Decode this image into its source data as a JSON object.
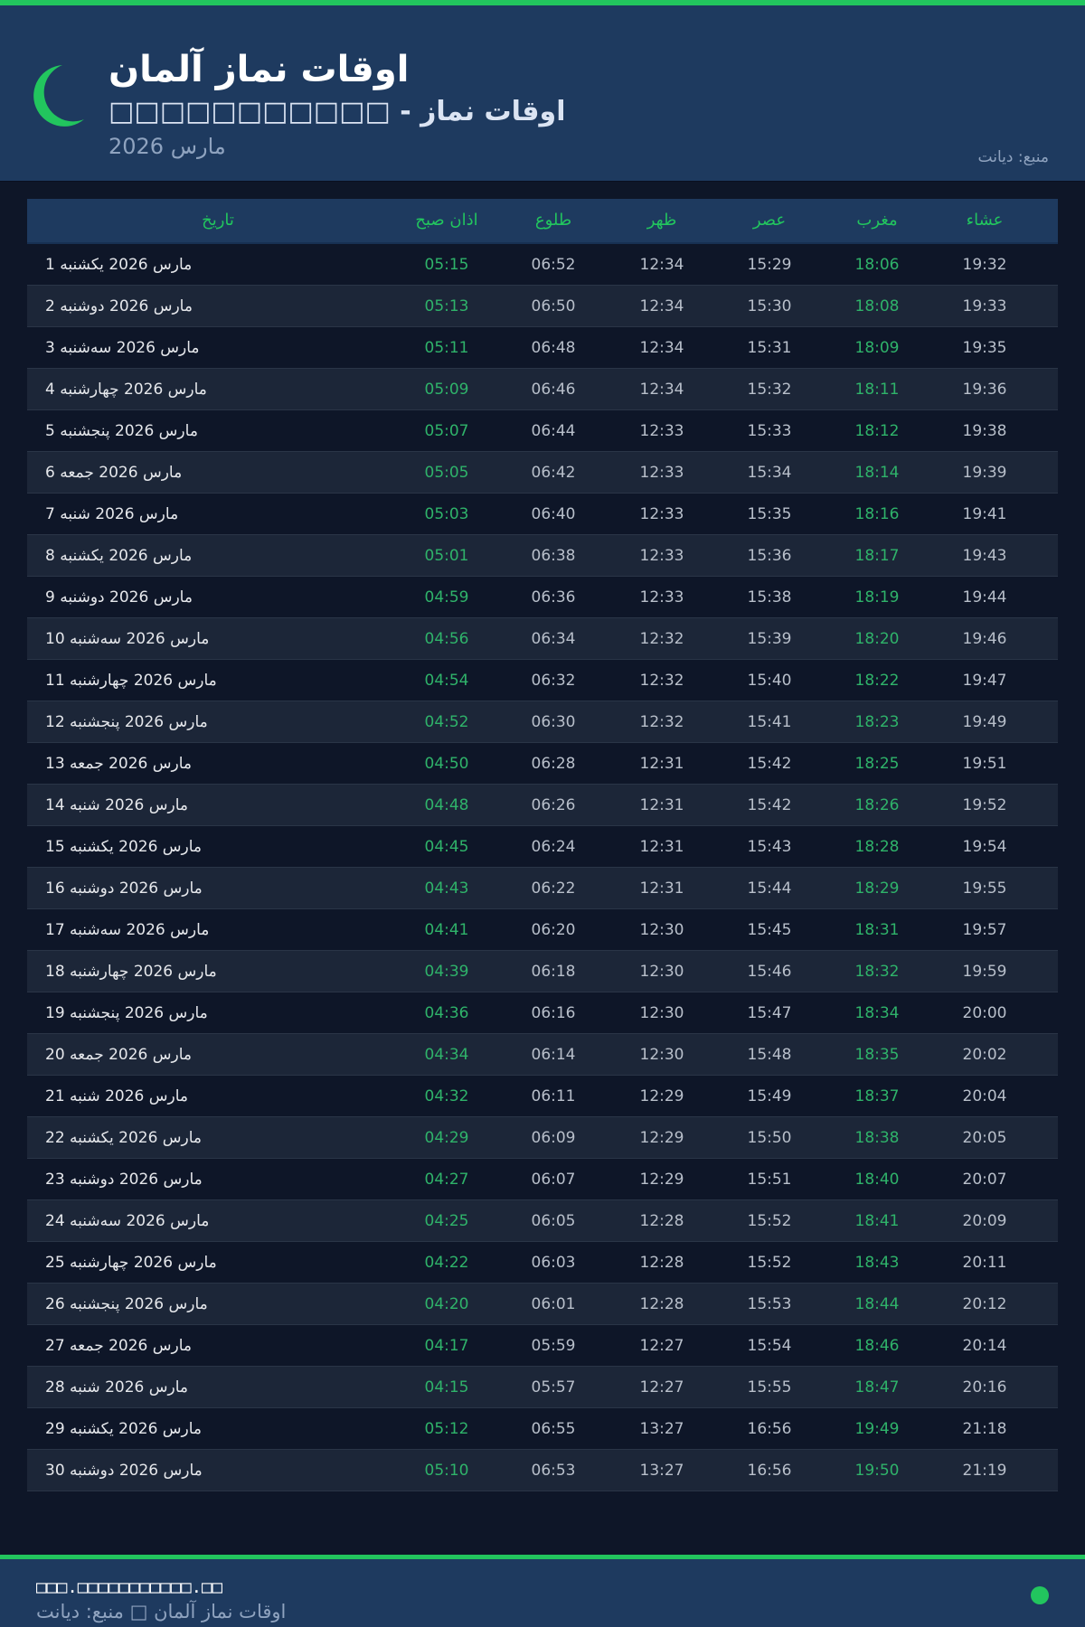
{
  "header": {
    "title": "اوقات نماز آلمان",
    "subtitle": "□□□□□□□□□□□ - اوقات نماز",
    "month": "مارس 2026",
    "source": "منبع: دیانت"
  },
  "colors": {
    "accent": "#22c55e",
    "header_bg": "#1e3a5f",
    "page_bg": "#0e1628"
  },
  "icons": {
    "logo": "crescent-moon-icon"
  },
  "table": {
    "columns": [
      "تاریخ",
      "اذان صبح",
      "طلوع",
      "ظهر",
      "عصر",
      "مغرب",
      "عشاء"
    ],
    "rows": [
      [
        "1 مارس 2026 یکشنبه",
        "05:15",
        "06:52",
        "12:34",
        "15:29",
        "18:06",
        "19:32"
      ],
      [
        "2 مارس 2026 دوشنبه",
        "05:13",
        "06:50",
        "12:34",
        "15:30",
        "18:08",
        "19:33"
      ],
      [
        "3 مارس 2026 سه‌شنبه",
        "05:11",
        "06:48",
        "12:34",
        "15:31",
        "18:09",
        "19:35"
      ],
      [
        "4 مارس 2026 چهارشنبه",
        "05:09",
        "06:46",
        "12:34",
        "15:32",
        "18:11",
        "19:36"
      ],
      [
        "5 مارس 2026 پنجشنبه",
        "05:07",
        "06:44",
        "12:33",
        "15:33",
        "18:12",
        "19:38"
      ],
      [
        "6 مارس 2026 جمعه",
        "05:05",
        "06:42",
        "12:33",
        "15:34",
        "18:14",
        "19:39"
      ],
      [
        "7 مارس 2026 شنبه",
        "05:03",
        "06:40",
        "12:33",
        "15:35",
        "18:16",
        "19:41"
      ],
      [
        "8 مارس 2026 یکشنبه",
        "05:01",
        "06:38",
        "12:33",
        "15:36",
        "18:17",
        "19:43"
      ],
      [
        "9 مارس 2026 دوشنبه",
        "04:59",
        "06:36",
        "12:33",
        "15:38",
        "18:19",
        "19:44"
      ],
      [
        "10 مارس 2026 سه‌شنبه",
        "04:56",
        "06:34",
        "12:32",
        "15:39",
        "18:20",
        "19:46"
      ],
      [
        "11 مارس 2026 چهارشنبه",
        "04:54",
        "06:32",
        "12:32",
        "15:40",
        "18:22",
        "19:47"
      ],
      [
        "12 مارس 2026 پنجشنبه",
        "04:52",
        "06:30",
        "12:32",
        "15:41",
        "18:23",
        "19:49"
      ],
      [
        "13 مارس 2026 جمعه",
        "04:50",
        "06:28",
        "12:31",
        "15:42",
        "18:25",
        "19:51"
      ],
      [
        "14 مارس 2026 شنبه",
        "04:48",
        "06:26",
        "12:31",
        "15:42",
        "18:26",
        "19:52"
      ],
      [
        "15 مارس 2026 یکشنبه",
        "04:45",
        "06:24",
        "12:31",
        "15:43",
        "18:28",
        "19:54"
      ],
      [
        "16 مارس 2026 دوشنبه",
        "04:43",
        "06:22",
        "12:31",
        "15:44",
        "18:29",
        "19:55"
      ],
      [
        "17 مارس 2026 سه‌شنبه",
        "04:41",
        "06:20",
        "12:30",
        "15:45",
        "18:31",
        "19:57"
      ],
      [
        "18 مارس 2026 چهارشنبه",
        "04:39",
        "06:18",
        "12:30",
        "15:46",
        "18:32",
        "19:59"
      ],
      [
        "19 مارس 2026 پنجشنبه",
        "04:36",
        "06:16",
        "12:30",
        "15:47",
        "18:34",
        "20:00"
      ],
      [
        "20 مارس 2026 جمعه",
        "04:34",
        "06:14",
        "12:30",
        "15:48",
        "18:35",
        "20:02"
      ],
      [
        "21 مارس 2026 شنبه",
        "04:32",
        "06:11",
        "12:29",
        "15:49",
        "18:37",
        "20:04"
      ],
      [
        "22 مارس 2026 یکشنبه",
        "04:29",
        "06:09",
        "12:29",
        "15:50",
        "18:38",
        "20:05"
      ],
      [
        "23 مارس 2026 دوشنبه",
        "04:27",
        "06:07",
        "12:29",
        "15:51",
        "18:40",
        "20:07"
      ],
      [
        "24 مارس 2026 سه‌شنبه",
        "04:25",
        "06:05",
        "12:28",
        "15:52",
        "18:41",
        "20:09"
      ],
      [
        "25 مارس 2026 چهارشنبه",
        "04:22",
        "06:03",
        "12:28",
        "15:52",
        "18:43",
        "20:11"
      ],
      [
        "26 مارس 2026 پنجشنبه",
        "04:20",
        "06:01",
        "12:28",
        "15:53",
        "18:44",
        "20:12"
      ],
      [
        "27 مارس 2026 جمعه",
        "04:17",
        "05:59",
        "12:27",
        "15:54",
        "18:46",
        "20:14"
      ],
      [
        "28 مارس 2026 شنبه",
        "04:15",
        "05:57",
        "12:27",
        "15:55",
        "18:47",
        "20:16"
      ],
      [
        "29 مارس 2026 یکشنبه",
        "05:12",
        "06:55",
        "13:27",
        "16:56",
        "19:49",
        "21:18"
      ],
      [
        "30 مارس 2026 دوشنبه",
        "05:10",
        "06:53",
        "13:27",
        "16:56",
        "19:50",
        "21:19"
      ]
    ]
  },
  "footer": {
    "site": "□□□.□□□□□□□□□□□.□□",
    "text": "اوقات نماز آلمان □ منبع: دیانت"
  }
}
